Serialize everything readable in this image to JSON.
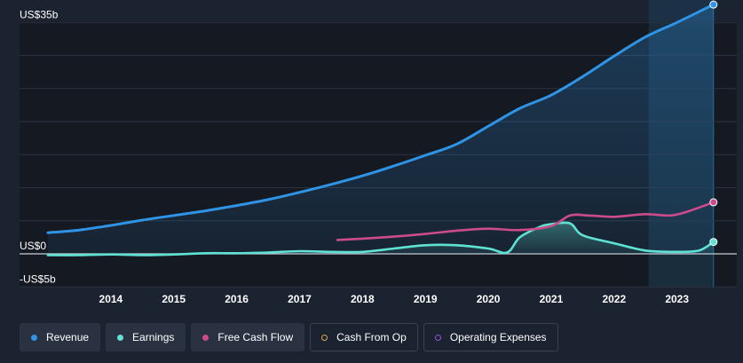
{
  "chart_data": {
    "type": "line",
    "y_ticks": [
      "US$35b",
      "US$0",
      "-US$5b"
    ],
    "ylim": [
      -5,
      35
    ],
    "x_ticks": [
      "2014",
      "2015",
      "2016",
      "2017",
      "2018",
      "2019",
      "2020",
      "2021",
      "2022",
      "2023"
    ],
    "xlim": [
      2013.0,
      2023.95
    ],
    "forecast_region": [
      2022.55,
      2023.58
    ],
    "colors": {
      "revenue": "#2f93e6",
      "earnings": "#60e2d3",
      "free_cash_flow": "#cc4b8c",
      "cash_from_op": "#e0a94c",
      "operating_expenses": "#8f57d6"
    },
    "series": [
      {
        "name": "Revenue",
        "key": "revenue",
        "points": [
          [
            2013.0,
            3.2
          ],
          [
            2013.5,
            3.6
          ],
          [
            2014.0,
            4.3
          ],
          [
            2014.5,
            5.1
          ],
          [
            2015.0,
            5.8
          ],
          [
            2015.5,
            6.5
          ],
          [
            2016.0,
            7.3
          ],
          [
            2016.5,
            8.2
          ],
          [
            2017.0,
            9.3
          ],
          [
            2017.5,
            10.5
          ],
          [
            2018.0,
            11.8
          ],
          [
            2018.5,
            13.3
          ],
          [
            2019.0,
            14.9
          ],
          [
            2019.5,
            16.6
          ],
          [
            2020.0,
            19.3
          ],
          [
            2020.5,
            22.0
          ],
          [
            2021.0,
            24.0
          ],
          [
            2021.5,
            26.8
          ],
          [
            2022.0,
            29.9
          ],
          [
            2022.5,
            32.8
          ],
          [
            2023.0,
            35.0
          ],
          [
            2023.58,
            37.7
          ]
        ]
      },
      {
        "name": "Earnings",
        "key": "earnings",
        "points": [
          [
            2013.0,
            -0.2
          ],
          [
            2013.5,
            -0.2
          ],
          [
            2014.0,
            -0.1
          ],
          [
            2014.5,
            -0.2
          ],
          [
            2015.0,
            -0.1
          ],
          [
            2015.5,
            0.1
          ],
          [
            2016.0,
            0.1
          ],
          [
            2016.5,
            0.2
          ],
          [
            2017.0,
            0.4
          ],
          [
            2017.5,
            0.3
          ],
          [
            2018.0,
            0.3
          ],
          [
            2018.5,
            0.8
          ],
          [
            2019.0,
            1.3
          ],
          [
            2019.5,
            1.3
          ],
          [
            2020.0,
            0.8
          ],
          [
            2020.3,
            0.2
          ],
          [
            2020.5,
            2.5
          ],
          [
            2020.8,
            4.0
          ],
          [
            2021.0,
            4.5
          ],
          [
            2021.3,
            4.6
          ],
          [
            2021.5,
            2.8
          ],
          [
            2022.0,
            1.6
          ],
          [
            2022.5,
            0.5
          ],
          [
            2023.0,
            0.3
          ],
          [
            2023.35,
            0.5
          ],
          [
            2023.58,
            1.8
          ]
        ]
      },
      {
        "name": "Free Cash Flow",
        "key": "free_cash_flow",
        "points": [
          [
            2017.6,
            2.1
          ],
          [
            2018.0,
            2.3
          ],
          [
            2018.5,
            2.6
          ],
          [
            2019.0,
            3.0
          ],
          [
            2019.5,
            3.5
          ],
          [
            2020.0,
            3.8
          ],
          [
            2020.5,
            3.6
          ],
          [
            2021.0,
            4.2
          ],
          [
            2021.3,
            5.8
          ],
          [
            2021.6,
            5.8
          ],
          [
            2022.0,
            5.6
          ],
          [
            2022.5,
            6.0
          ],
          [
            2022.9,
            5.8
          ],
          [
            2023.2,
            6.5
          ],
          [
            2023.58,
            7.8
          ]
        ]
      }
    ],
    "legend": [
      "Revenue",
      "Earnings",
      "Free Cash Flow",
      "Cash From Op",
      "Operating Expenses"
    ],
    "legend_active": [
      true,
      true,
      true,
      false,
      false
    ]
  }
}
